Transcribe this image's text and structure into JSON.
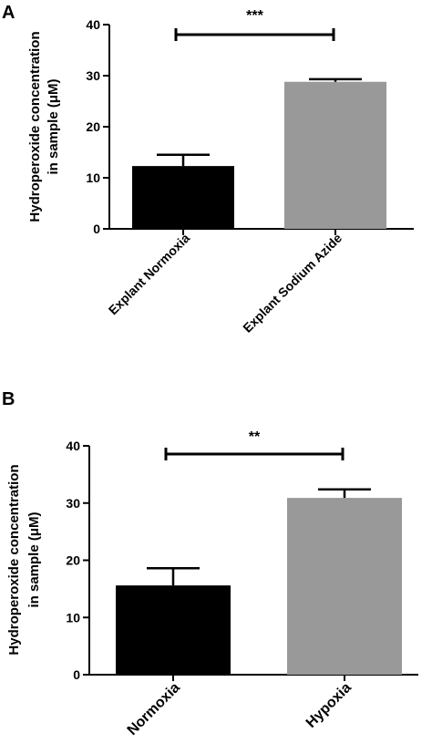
{
  "panels": [
    {
      "letter": "A"
    },
    {
      "letter": "B"
    }
  ],
  "chart_data": [
    {
      "type": "bar",
      "panel": "A",
      "categories": [
        "Explant Normoxia",
        "Explant Sodium Azide"
      ],
      "values": [
        12.3,
        28.8
      ],
      "error_up": [
        2.2,
        0.5
      ],
      "bar_colors": [
        "#000000",
        "#999999"
      ],
      "ylabel_lines": [
        "Hydroperoxide concentration",
        "in sample (μM)"
      ],
      "ylim": [
        0,
        40
      ],
      "yticks": [
        "0",
        "10",
        "20",
        "30",
        "40"
      ],
      "significance": "***",
      "grid": false
    },
    {
      "type": "bar",
      "panel": "B",
      "categories": [
        "Normoxia",
        "Hypoxia"
      ],
      "values": [
        15.6,
        30.9
      ],
      "error_up": [
        3.0,
        1.5
      ],
      "bar_colors": [
        "#000000",
        "#999999"
      ],
      "ylabel_lines": [
        "Hydroperoxide concentration",
        "in sample (μM)"
      ],
      "ylim": [
        0,
        40
      ],
      "yticks": [
        "0",
        "10",
        "20",
        "30",
        "40"
      ],
      "significance": "**",
      "grid": false
    }
  ]
}
